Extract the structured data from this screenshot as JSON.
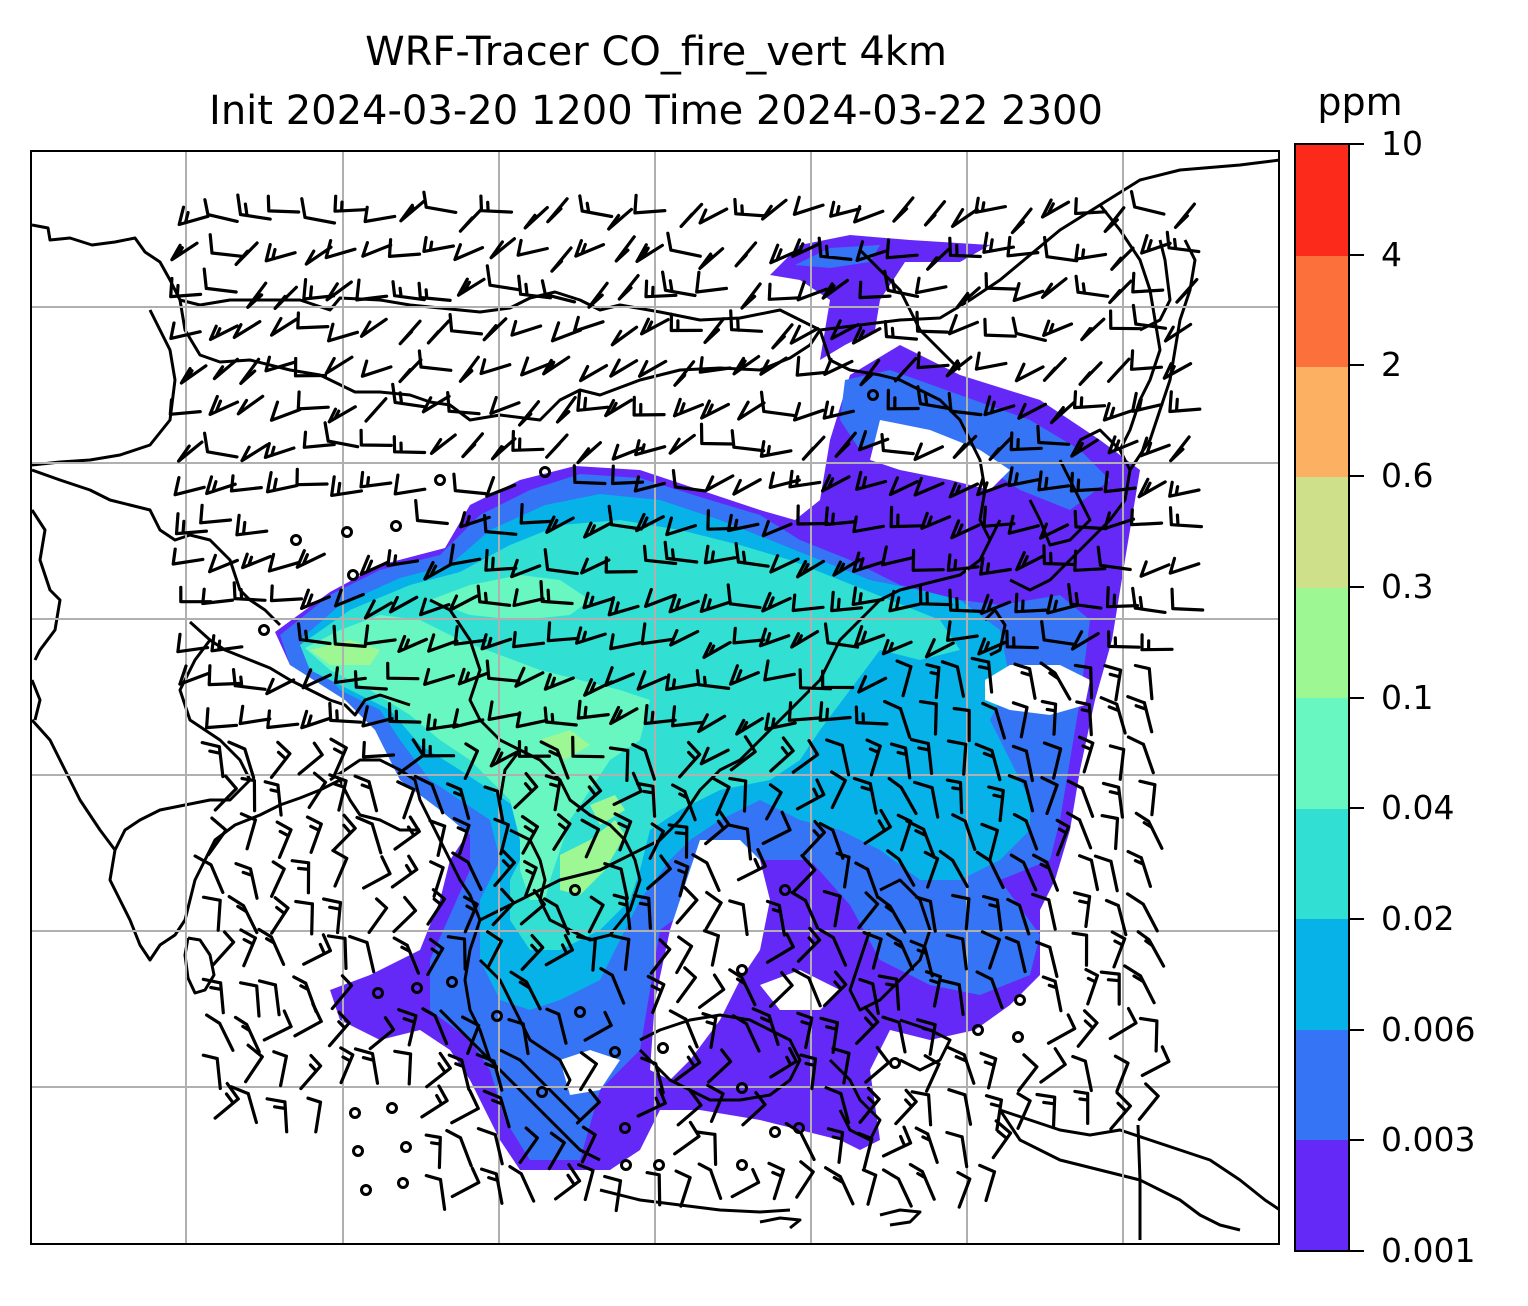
{
  "title": {
    "line1": "WRF-Tracer CO_fire_vert 4km",
    "line2": "Init 2024-03-20 1200 Time 2024-03-22 2300"
  },
  "colorbar": {
    "unit": "ppm",
    "tick_labels": [
      "0.001",
      "0.003",
      "0.006",
      "0.02",
      "0.04",
      "0.1",
      "0.3",
      "0.6",
      "2",
      "4",
      "10"
    ],
    "colors_bottom_to_top": [
      "#6529f7",
      "#3474f5",
      "#06b2e8",
      "#31e0d3",
      "#68f7c0",
      "#9df792",
      "#cfe08a",
      "#fcb061",
      "#fc703c",
      "#fc2a1a"
    ]
  },
  "map": {
    "gridlines": true,
    "coastline_color": "#000000",
    "gridline_color": "#b0b0b0",
    "wind_barb_color": "#000000",
    "features": [
      "coastlines",
      "country-borders",
      "wind-barbs",
      "calm-circles",
      "co-fire-plume"
    ]
  }
}
